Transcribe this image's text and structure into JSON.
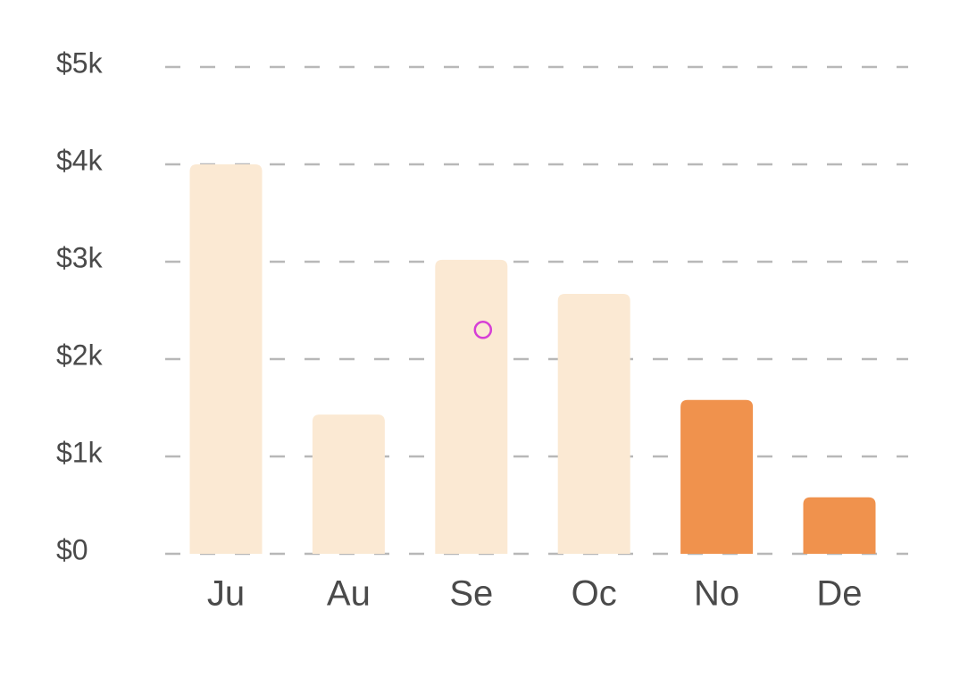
{
  "chart_data": {
    "type": "bar",
    "categories": [
      "Ju",
      "Au",
      "Se",
      "Oc",
      "No",
      "De"
    ],
    "values": [
      4000,
      1430,
      3020,
      2670,
      1580,
      580
    ],
    "highlighted": [
      false,
      false,
      false,
      false,
      true,
      true
    ],
    "y_ticks": [
      0,
      1000,
      2000,
      3000,
      4000,
      5000
    ],
    "y_tick_labels": [
      "$0",
      "$1k",
      "$2k",
      "$3k",
      "$4k",
      "$5k"
    ],
    "ylim": [
      0,
      5000
    ],
    "grid": true,
    "legend": "none",
    "title": "",
    "xlabel": "",
    "ylabel": "",
    "colors": {
      "bar": "#fbe9d3",
      "bar_highlight": "#f0924d",
      "grid": "#b8b8b8",
      "text": "#4a4a4a",
      "cursor": "#d63fd6"
    },
    "cursor": {
      "category": "Se",
      "value": 2300
    }
  }
}
